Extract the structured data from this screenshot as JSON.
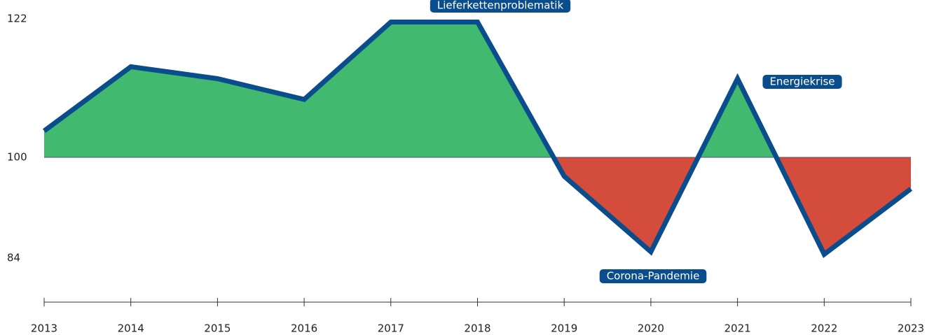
{
  "chart_data": {
    "type": "area",
    "categories": [
      "2013",
      "2014",
      "2015",
      "2016",
      "2017",
      "2018",
      "2019",
      "2020",
      "2021",
      "2022",
      "2023"
    ],
    "series": [
      {
        "values": [
          104.2,
          114.4,
          112.5,
          109.2,
          121.5,
          121.5,
          97,
          85,
          112.5,
          84.6,
          95
        ],
        "color": "#0a4d8c"
      }
    ],
    "baseline": 100,
    "above_color": "#41b96f",
    "below_color": "#d44c3c",
    "ylim": [
      77,
      125
    ],
    "yticks": [
      84,
      100,
      122
    ],
    "annotations": [
      "Lieferkettenproblematik",
      "Energiekrise",
      "Corona-Pandemie"
    ]
  }
}
